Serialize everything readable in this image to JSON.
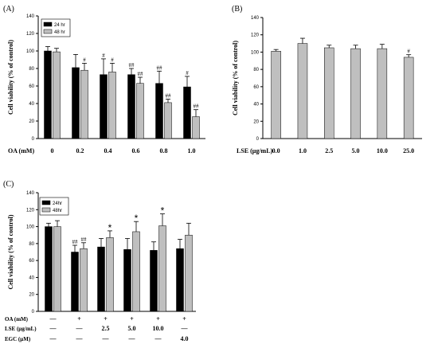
{
  "colors": {
    "black": "#000000",
    "gray": "#bfbfbf"
  },
  "chart_data": [
    {
      "panel": "(A)",
      "type": "bar",
      "ylabel": "Cell viability (% of control)",
      "xlabel": "OA (mM)",
      "categories": [
        "0",
        "0.2",
        "0.4",
        "0.6",
        "0.8",
        "1.0"
      ],
      "ylim": [
        0,
        140
      ],
      "yticks": [
        0,
        20,
        40,
        60,
        80,
        100,
        120,
        140
      ],
      "legend_placement": "top-left",
      "series": [
        {
          "name": "24 hr",
          "color": "#000000",
          "values": [
            100,
            81,
            73,
            73,
            63,
            59
          ],
          "errors": [
            5,
            15,
            18,
            7,
            14,
            12
          ]
        },
        {
          "name": "48 hr",
          "color": "#bfbfbf",
          "values": [
            99,
            78,
            76,
            63,
            41,
            25
          ],
          "errors": [
            4,
            8,
            10,
            7,
            4,
            8
          ]
        }
      ],
      "annotations": [
        {
          "category": 1,
          "series": 1,
          "text": "#"
        },
        {
          "category": 2,
          "series": 0,
          "text": "#"
        },
        {
          "category": 2,
          "series": 1,
          "text": "#"
        },
        {
          "category": 3,
          "series": 0,
          "text": "##"
        },
        {
          "category": 3,
          "series": 1,
          "text": "##"
        },
        {
          "category": 4,
          "series": 0,
          "text": "##"
        },
        {
          "category": 4,
          "series": 1,
          "text": "##"
        },
        {
          "category": 5,
          "series": 0,
          "text": "#"
        },
        {
          "category": 5,
          "series": 1,
          "text": "##"
        }
      ]
    },
    {
      "panel": "(B)",
      "type": "bar",
      "ylabel": "Cell viability (% of control)",
      "xlabel": "LSE (μg/mL)",
      "categories": [
        "0.0",
        "1.0",
        "2.5",
        "5.0",
        "10.0",
        "25.0"
      ],
      "ylim": [
        0,
        140
      ],
      "yticks": [
        0,
        20,
        40,
        60,
        80,
        100,
        120,
        140
      ],
      "series": [
        {
          "color": "#bfbfbf",
          "values": [
            101,
            110,
            105,
            104,
            104,
            94
          ],
          "errors": [
            2,
            6,
            3,
            4,
            5,
            3
          ]
        }
      ],
      "annotations": [
        {
          "category": 5,
          "series": 0,
          "text": "#"
        }
      ]
    },
    {
      "panel": "(C)",
      "type": "bar",
      "ylabel": "Cell viability (% of control)",
      "ylim": [
        0,
        140
      ],
      "yticks": [
        0,
        20,
        40,
        60,
        80,
        100,
        120,
        140
      ],
      "legend_placement": "top-left",
      "series": [
        {
          "name": "24hr",
          "color": "#000000",
          "values": [
            100,
            70,
            76,
            73,
            72,
            74
          ],
          "errors": [
            4,
            8,
            10,
            13,
            10,
            11
          ]
        },
        {
          "name": "48hr",
          "color": "#bfbfbf",
          "values": [
            100,
            74,
            87,
            94,
            101,
            90
          ],
          "errors": [
            7,
            7,
            8,
            12,
            14,
            14
          ]
        }
      ],
      "annotations": [
        {
          "category": 1,
          "series": 0,
          "text": "##"
        },
        {
          "category": 1,
          "series": 1,
          "text": "##"
        },
        {
          "category": 2,
          "series": 1,
          "text": "*"
        },
        {
          "category": 3,
          "series": 1,
          "text": "*"
        },
        {
          "category": 4,
          "series": 1,
          "text": "*"
        }
      ],
      "table": [
        {
          "label": "OA (mM)",
          "values": [
            "—",
            "+",
            "+",
            "+",
            "+",
            "+"
          ]
        },
        {
          "label": "LSE (μg/mL)",
          "values": [
            "—",
            "—",
            "2.5",
            "5.0",
            "10.0",
            "—"
          ]
        },
        {
          "label": "EGC (μM)",
          "values": [
            "—",
            "—",
            "—",
            "—",
            "—",
            "4.0"
          ]
        }
      ]
    }
  ]
}
